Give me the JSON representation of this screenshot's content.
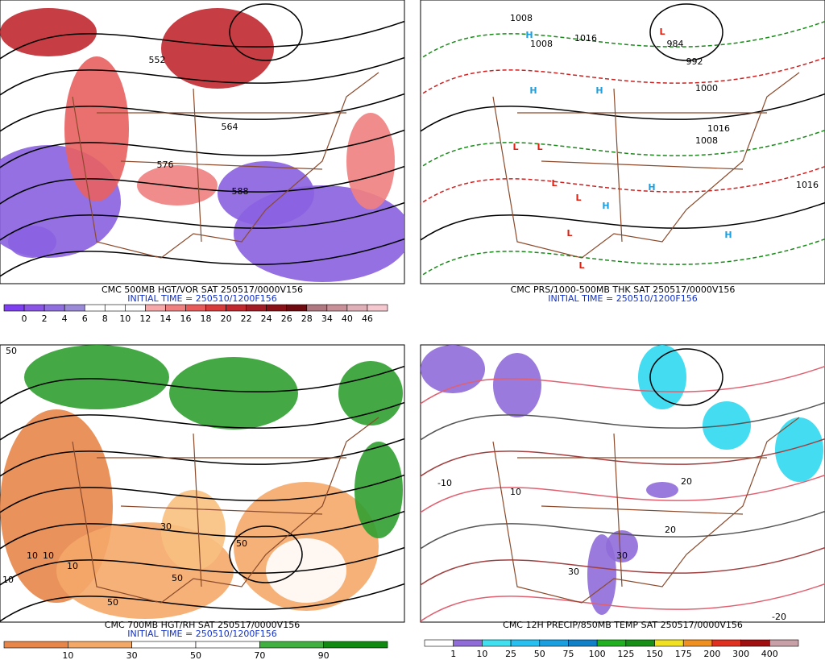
{
  "panels": [
    {
      "caption": "CMC 500MB HGT/VOR SAT 250517/0000V156",
      "initial_time": "INITIAL TIME = 250510/1200F156",
      "map_labels": [
        "552",
        "564",
        "576",
        "588"
      ],
      "colorbar": {
        "labels": [
          0,
          2,
          4,
          6,
          8,
          10,
          12,
          14,
          16,
          18,
          20,
          22,
          24,
          26,
          28,
          34,
          40,
          46
        ],
        "colors": [
          "#7d3ff0",
          "#8a55e6",
          "#8f6fe0",
          "#9a8ad8",
          "#ffffff",
          "#ffffff",
          "#ffffff",
          "#f7a8a8",
          "#f08080",
          "#e85a5a",
          "#d93b3b",
          "#c0282e",
          "#a31b24",
          "#8a1018",
          "#6e0a10",
          "#b07880",
          "#c89098",
          "#e0b0b8",
          "#f5c8d0"
        ]
      }
    },
    {
      "caption": "CMC PRS/1000-500MB THK SAT 250517/0000V156",
      "initial_time": "INITIAL TIME = 250510/1200F156",
      "map_labels": [
        "1008",
        "1008",
        "1016",
        "984",
        "992",
        "1000",
        "1008",
        "1016",
        "1016",
        "H",
        "H",
        "H",
        "H",
        "H",
        "H",
        "L",
        "L",
        "L",
        "L",
        "L",
        "L",
        "L"
      ]
    },
    {
      "caption": "CMC 700MB HGT/RH SAT 250517/0000V156",
      "initial_time": "INITIAL TIME = 250510/1200F156",
      "map_labels": [
        "50",
        "10",
        "10",
        "10",
        "30",
        "50",
        "50",
        "50",
        "10"
      ],
      "colorbar": {
        "labels": [
          10,
          30,
          50,
          70,
          90
        ],
        "colors": [
          "#e8864a",
          "#f4a868",
          "#ffffff",
          "#ffffff",
          "#40b040",
          "#108a10"
        ]
      }
    },
    {
      "caption": "CMC 12H PRECIP/850MB TEMP SAT 250517/0000V156",
      "map_labels": [
        "-10",
        "10",
        "20",
        "20",
        "30",
        "30",
        "-20"
      ],
      "colorbar": {
        "labels": [
          1,
          10,
          25,
          50,
          75,
          100,
          125,
          150,
          175,
          200,
          300,
          400
        ],
        "colors": [
          "#ffffff",
          "#8f6cd8",
          "#40e0f0",
          "#28c0f0",
          "#1aa0e0",
          "#1080c8",
          "#20b020",
          "#189018",
          "#f0e020",
          "#f09020",
          "#e03020",
          "#a01010",
          "#c8a0a8"
        ]
      }
    }
  ]
}
